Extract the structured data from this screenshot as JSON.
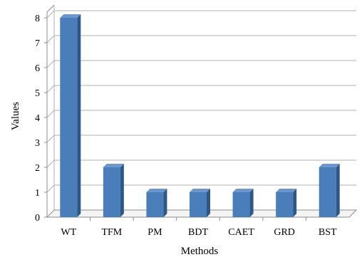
{
  "chart_data": {
    "type": "bar",
    "style": "3d-column",
    "categories": [
      "WT",
      "TFM",
      "PM",
      "BDT",
      "CAET",
      "GRD",
      "BST"
    ],
    "values": [
      8,
      2,
      1,
      1,
      1,
      1,
      2
    ],
    "xlabel": "Methods",
    "ylabel": "Values",
    "ylim": [
      0,
      8
    ],
    "yticks": [
      "0",
      "1",
      "2",
      "3",
      "4",
      "5",
      "6",
      "7",
      "8"
    ],
    "grid": true,
    "legend": "none",
    "colors": {
      "bar_front": "#4a7ebb",
      "bar_side": "#2d5787",
      "bar_top": "#6d97cc",
      "grid": "#b0b0b0",
      "axis": "#8c8c8c"
    }
  }
}
